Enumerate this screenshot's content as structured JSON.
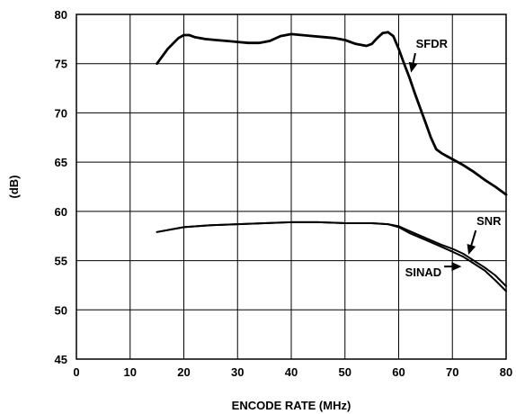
{
  "chart_data": {
    "type": "line",
    "title": "",
    "xlabel": "ENCODE RATE (MHz)",
    "ylabel": "(dB)",
    "xlim": [
      0,
      80
    ],
    "ylim": [
      45,
      80
    ],
    "xticks": [
      0,
      10,
      20,
      30,
      40,
      50,
      60,
      70,
      80
    ],
    "yticks": [
      45,
      50,
      55,
      60,
      65,
      70,
      75,
      80
    ],
    "grid": true,
    "legend": "none",
    "series": [
      {
        "name": "SFDR",
        "color": "#000000",
        "x": [
          15,
          17,
          19,
          20,
          21,
          22,
          24,
          26,
          28,
          30,
          32,
          34,
          36,
          38,
          40,
          42,
          44,
          46,
          48,
          50,
          52,
          54,
          55,
          56,
          57,
          58,
          59,
          60,
          61,
          62,
          63,
          64,
          65,
          66,
          67,
          68,
          69,
          70,
          72,
          74,
          76,
          78,
          80
        ],
        "y": [
          75.0,
          76.5,
          77.6,
          77.9,
          77.9,
          77.7,
          77.5,
          77.4,
          77.3,
          77.2,
          77.1,
          77.1,
          77.3,
          77.8,
          78.0,
          77.9,
          77.8,
          77.7,
          77.6,
          77.4,
          77.0,
          76.8,
          77.0,
          77.6,
          78.1,
          78.2,
          77.8,
          76.5,
          75.0,
          73.6,
          72.0,
          70.5,
          69.0,
          67.5,
          66.3,
          65.9,
          65.6,
          65.3,
          64.7,
          64.0,
          63.2,
          62.5,
          61.7
        ]
      },
      {
        "name": "SNR",
        "color": "#000000",
        "x": [
          15,
          20,
          25,
          30,
          35,
          40,
          45,
          50,
          55,
          58,
          60,
          62,
          65,
          68,
          70,
          72,
          74,
          76,
          78,
          80
        ],
        "y": [
          57.9,
          58.4,
          58.6,
          58.7,
          58.8,
          58.9,
          58.9,
          58.8,
          58.8,
          58.7,
          58.5,
          58.0,
          57.3,
          56.6,
          56.2,
          55.7,
          55.0,
          54.3,
          53.5,
          52.4
        ]
      },
      {
        "name": "SINAD",
        "color": "#000000",
        "x": [
          15,
          20,
          25,
          30,
          35,
          40,
          45,
          50,
          55,
          58,
          60,
          62,
          65,
          68,
          70,
          72,
          74,
          76,
          78,
          80
        ],
        "y": [
          57.9,
          58.4,
          58.6,
          58.7,
          58.8,
          58.9,
          58.9,
          58.8,
          58.8,
          58.7,
          58.4,
          57.8,
          57.1,
          56.4,
          55.9,
          55.4,
          54.7,
          54.0,
          53.0,
          51.9
        ]
      }
    ],
    "annotations": [
      {
        "text": "SFDR",
        "x": 63.2,
        "y": 76.6,
        "arrow_to": [
          62.3,
          74.1
        ]
      },
      {
        "text": "SNR",
        "x": 74.5,
        "y": 58.6,
        "arrow_to": [
          73.0,
          55.6
        ]
      },
      {
        "text": "SINAD",
        "x": 61.2,
        "y": 53.4,
        "arrow_to": [
          71.7,
          54.4
        ]
      }
    ]
  }
}
